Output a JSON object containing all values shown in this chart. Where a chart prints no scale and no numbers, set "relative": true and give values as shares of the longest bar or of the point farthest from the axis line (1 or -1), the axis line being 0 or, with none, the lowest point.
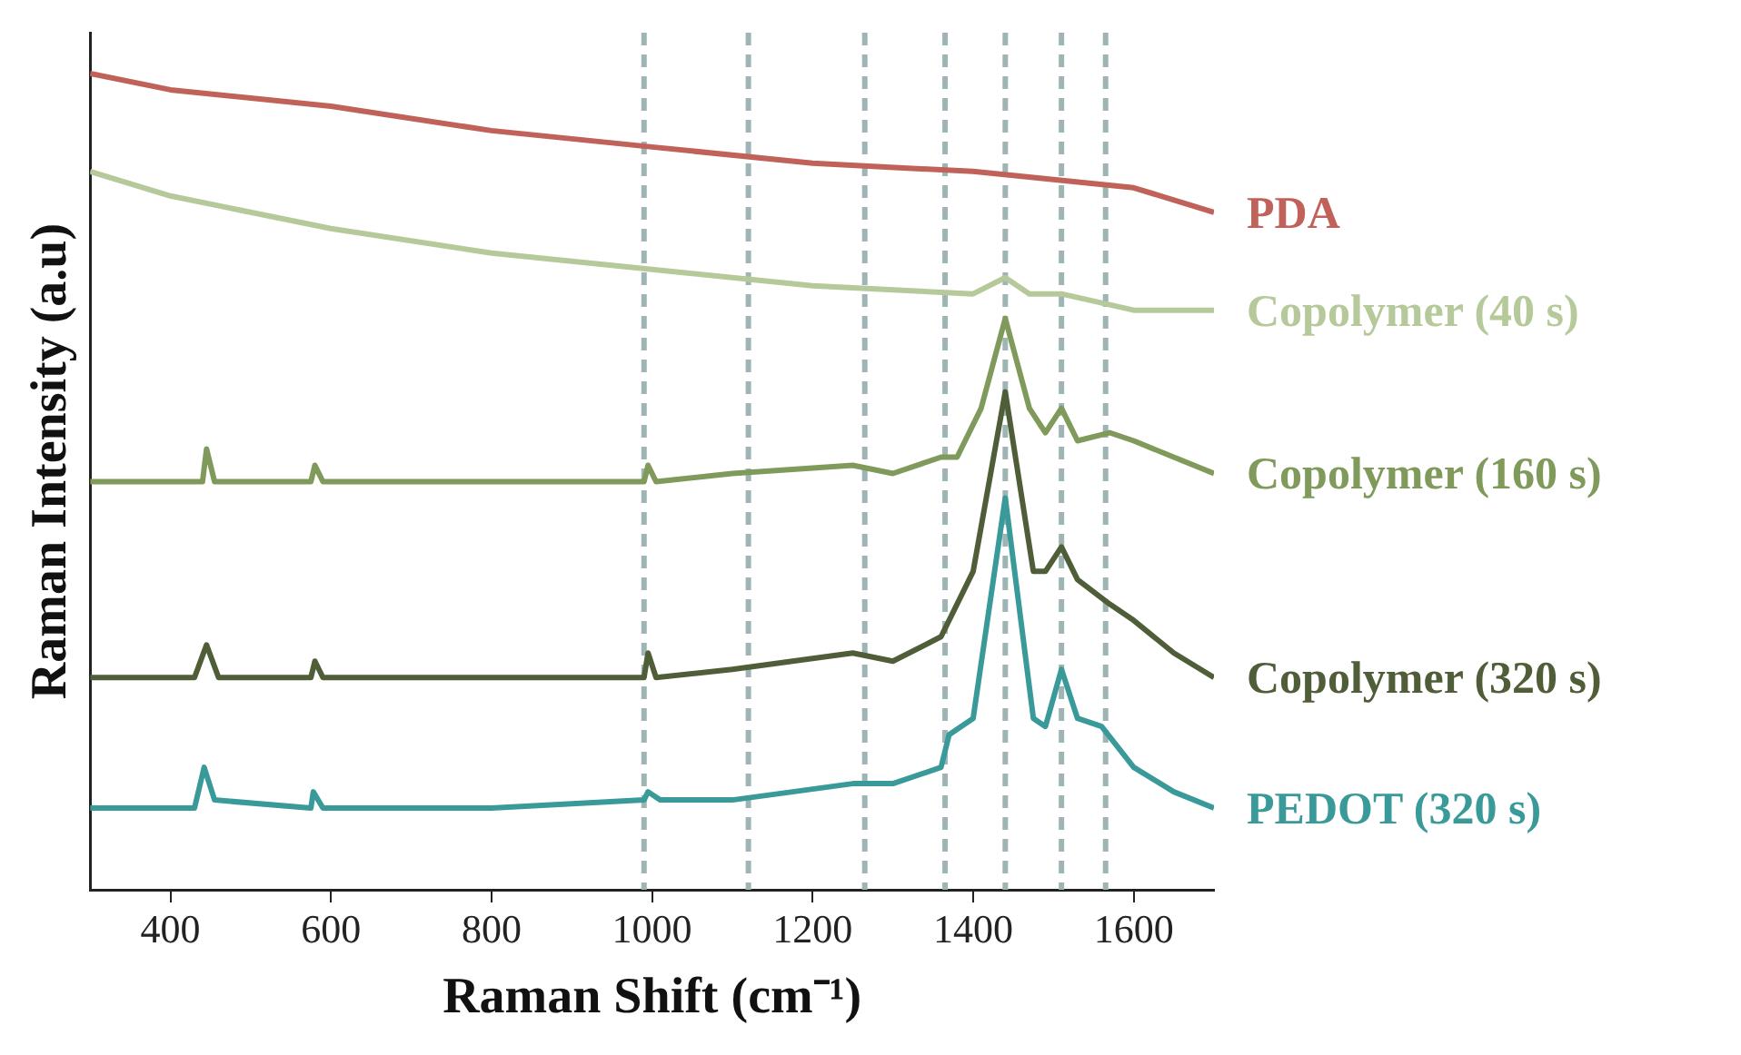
{
  "chart_data": {
    "type": "line",
    "relative": true,
    "xlabel": "Raman Shift (cm⁻¹)",
    "ylabel": "Raman Intensity (a.u)",
    "xlim": [
      300,
      1700
    ],
    "xticks": [
      400,
      600,
      800,
      1000,
      1200,
      1400,
      1600
    ],
    "grid": false,
    "legend": false,
    "marker": "none",
    "line_style": "solid",
    "series": [
      {
        "name": "PDA",
        "color": "#c0625a",
        "x": [
          300,
          400,
          600,
          800,
          1000,
          1200,
          1400,
          1500,
          1600,
          1700
        ],
        "values": [
          1.0,
          0.98,
          0.96,
          0.93,
          0.91,
          0.89,
          0.88,
          0.87,
          0.86,
          0.83
        ]
      },
      {
        "name": "Copolymer (40 s)",
        "color": "#b5c99a",
        "x": [
          300,
          400,
          600,
          800,
          1000,
          1200,
          1400,
          1440,
          1470,
          1510,
          1600,
          1700
        ],
        "values": [
          0.88,
          0.85,
          0.81,
          0.78,
          0.76,
          0.74,
          0.73,
          0.75,
          0.73,
          0.73,
          0.71,
          0.71
        ]
      },
      {
        "name": "Copolymer (160 s)",
        "color": "#7f9a5a",
        "x": [
          300,
          440,
          445,
          455,
          575,
          580,
          590,
          800,
          990,
          995,
          1005,
          1100,
          1250,
          1300,
          1360,
          1380,
          1410,
          1440,
          1470,
          1490,
          1510,
          1530,
          1570,
          1600,
          1700
        ],
        "values": [
          0.5,
          0.5,
          0.54,
          0.5,
          0.5,
          0.52,
          0.5,
          0.5,
          0.5,
          0.52,
          0.5,
          0.51,
          0.52,
          0.51,
          0.53,
          0.53,
          0.59,
          0.7,
          0.59,
          0.56,
          0.59,
          0.55,
          0.56,
          0.55,
          0.51
        ]
      },
      {
        "name": "Copolymer (320 s)",
        "color": "#4f5e38",
        "x": [
          300,
          430,
          445,
          460,
          575,
          580,
          590,
          800,
          990,
          995,
          1005,
          1100,
          1250,
          1300,
          1360,
          1375,
          1400,
          1440,
          1475,
          1490,
          1510,
          1530,
          1570,
          1600,
          1650,
          1700
        ],
        "values": [
          0.26,
          0.26,
          0.3,
          0.26,
          0.26,
          0.28,
          0.26,
          0.26,
          0.26,
          0.29,
          0.26,
          0.27,
          0.29,
          0.28,
          0.31,
          0.34,
          0.39,
          0.61,
          0.39,
          0.39,
          0.42,
          0.38,
          0.35,
          0.33,
          0.29,
          0.26
        ]
      },
      {
        "name": "PEDOT (320 s)",
        "color": "#3a9a9a",
        "x": [
          300,
          430,
          442,
          455,
          575,
          578,
          590,
          800,
          990,
          995,
          1010,
          1100,
          1250,
          1300,
          1360,
          1370,
          1400,
          1440,
          1475,
          1490,
          1510,
          1530,
          1560,
          1600,
          1650,
          1700
        ],
        "values": [
          0.1,
          0.1,
          0.15,
          0.11,
          0.1,
          0.12,
          0.1,
          0.1,
          0.11,
          0.12,
          0.11,
          0.11,
          0.13,
          0.13,
          0.15,
          0.19,
          0.21,
          0.48,
          0.21,
          0.2,
          0.27,
          0.21,
          0.2,
          0.15,
          0.12,
          0.1
        ]
      }
    ],
    "ref_lines": [
      {
        "axis": "x",
        "value": 990,
        "color": "#9fb5b5",
        "line_style": "dashed"
      },
      {
        "axis": "x",
        "value": 1120,
        "color": "#9fb5b5",
        "line_style": "dashed"
      },
      {
        "axis": "x",
        "value": 1265,
        "color": "#9fb5b5",
        "line_style": "dashed"
      },
      {
        "axis": "x",
        "value": 1365,
        "color": "#9fb5b5",
        "line_style": "dashed"
      },
      {
        "axis": "x",
        "value": 1440,
        "color": "#9fb5b5",
        "line_style": "dashed"
      },
      {
        "axis": "x",
        "value": 1510,
        "color": "#9fb5b5",
        "line_style": "dashed"
      },
      {
        "axis": "x",
        "value": 1565,
        "color": "#9fb5b5",
        "line_style": "dashed"
      }
    ]
  }
}
